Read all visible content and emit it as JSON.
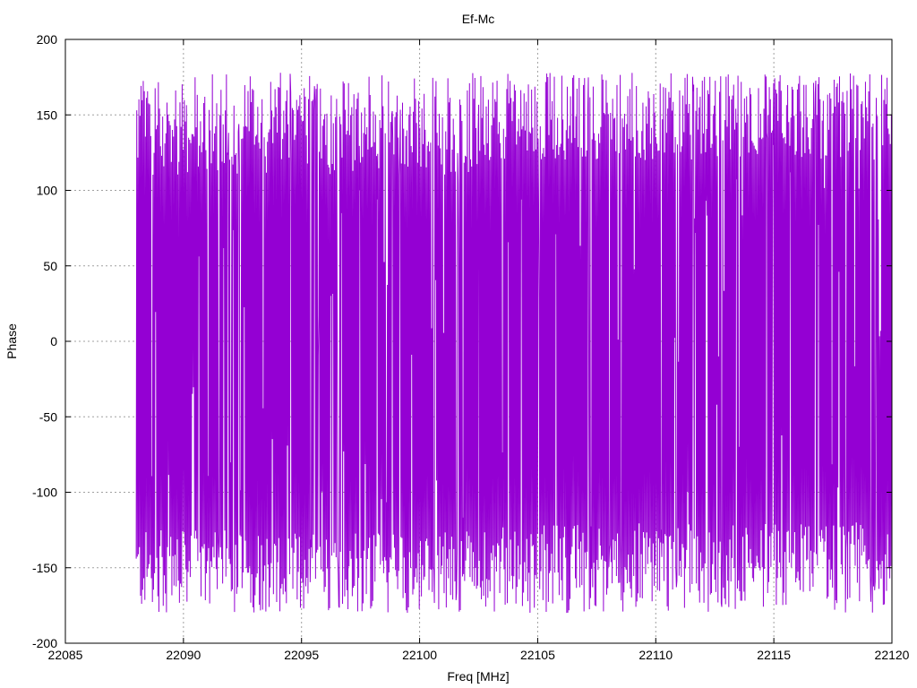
{
  "chart_data": {
    "type": "line",
    "title": "Ef-Mc",
    "xlabel": "Freq [MHz]",
    "ylabel": "Phase",
    "xlim": [
      22085,
      22120
    ],
    "ylim": [
      -200,
      200
    ],
    "x_ticks": [
      22085,
      22090,
      22095,
      22100,
      22105,
      22110,
      22115,
      22120
    ],
    "y_ticks": [
      -200,
      -150,
      -100,
      -50,
      0,
      50,
      100,
      150,
      200
    ],
    "x_tick_labels": [
      "22085",
      "22090",
      "22095",
      "22100",
      "22105",
      "22110",
      "22115",
      "22120"
    ],
    "y_tick_labels": [
      "-200",
      "-150",
      "-100",
      "-50",
      "0",
      "50",
      "100",
      "150",
      "200"
    ],
    "grid": true,
    "series": [
      {
        "color": "#9400d3",
        "x_start": 22088.0,
        "x_end": 22120.0,
        "points": 1400,
        "wrap_range": [
          -180,
          180
        ],
        "note_values": "phase wraps between -180 and 180 degrees; dense oscillation"
      }
    ]
  }
}
